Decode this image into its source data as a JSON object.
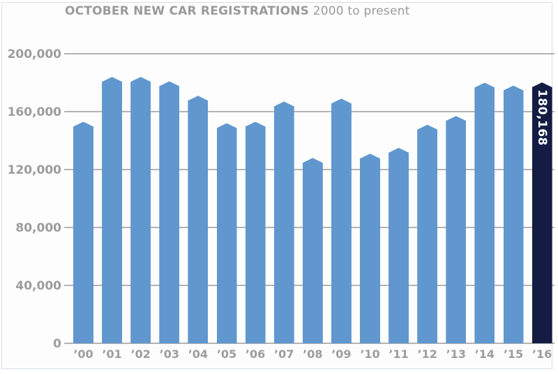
{
  "chart_data": {
    "type": "bar",
    "title": "OCTOBER NEW CAR REGISTRATIONS",
    "subtitle": "2000 to present",
    "xlabel": "",
    "ylabel": "",
    "ylim": [
      0,
      200000
    ],
    "yticks": [
      0,
      40000,
      80000,
      120000,
      160000,
      200000
    ],
    "ytick_labels": [
      "0",
      "40,000",
      "80,000",
      "120,000",
      "160,000",
      "200,000"
    ],
    "grid": true,
    "legend": null,
    "categories": [
      "'00",
      "'01",
      "'02",
      "'03",
      "'04",
      "'05",
      "'06",
      "'07",
      "'08",
      "'09",
      "'10",
      "'11",
      "'12",
      "'13",
      "'14",
      "'15",
      "'16"
    ],
    "values": [
      153000,
      184000,
      184000,
      181000,
      171000,
      152000,
      153000,
      167000,
      128000,
      169000,
      131000,
      135000,
      151000,
      157000,
      180000,
      178000,
      180168
    ],
    "highlight_index": 16,
    "annotations": [
      {
        "category": "'16",
        "text": "180,168"
      }
    ],
    "colors": {
      "bar": "#6097cf",
      "highlight": "#141c44",
      "grid": "#b3b3b3",
      "text": "#9c9c9c"
    }
  }
}
